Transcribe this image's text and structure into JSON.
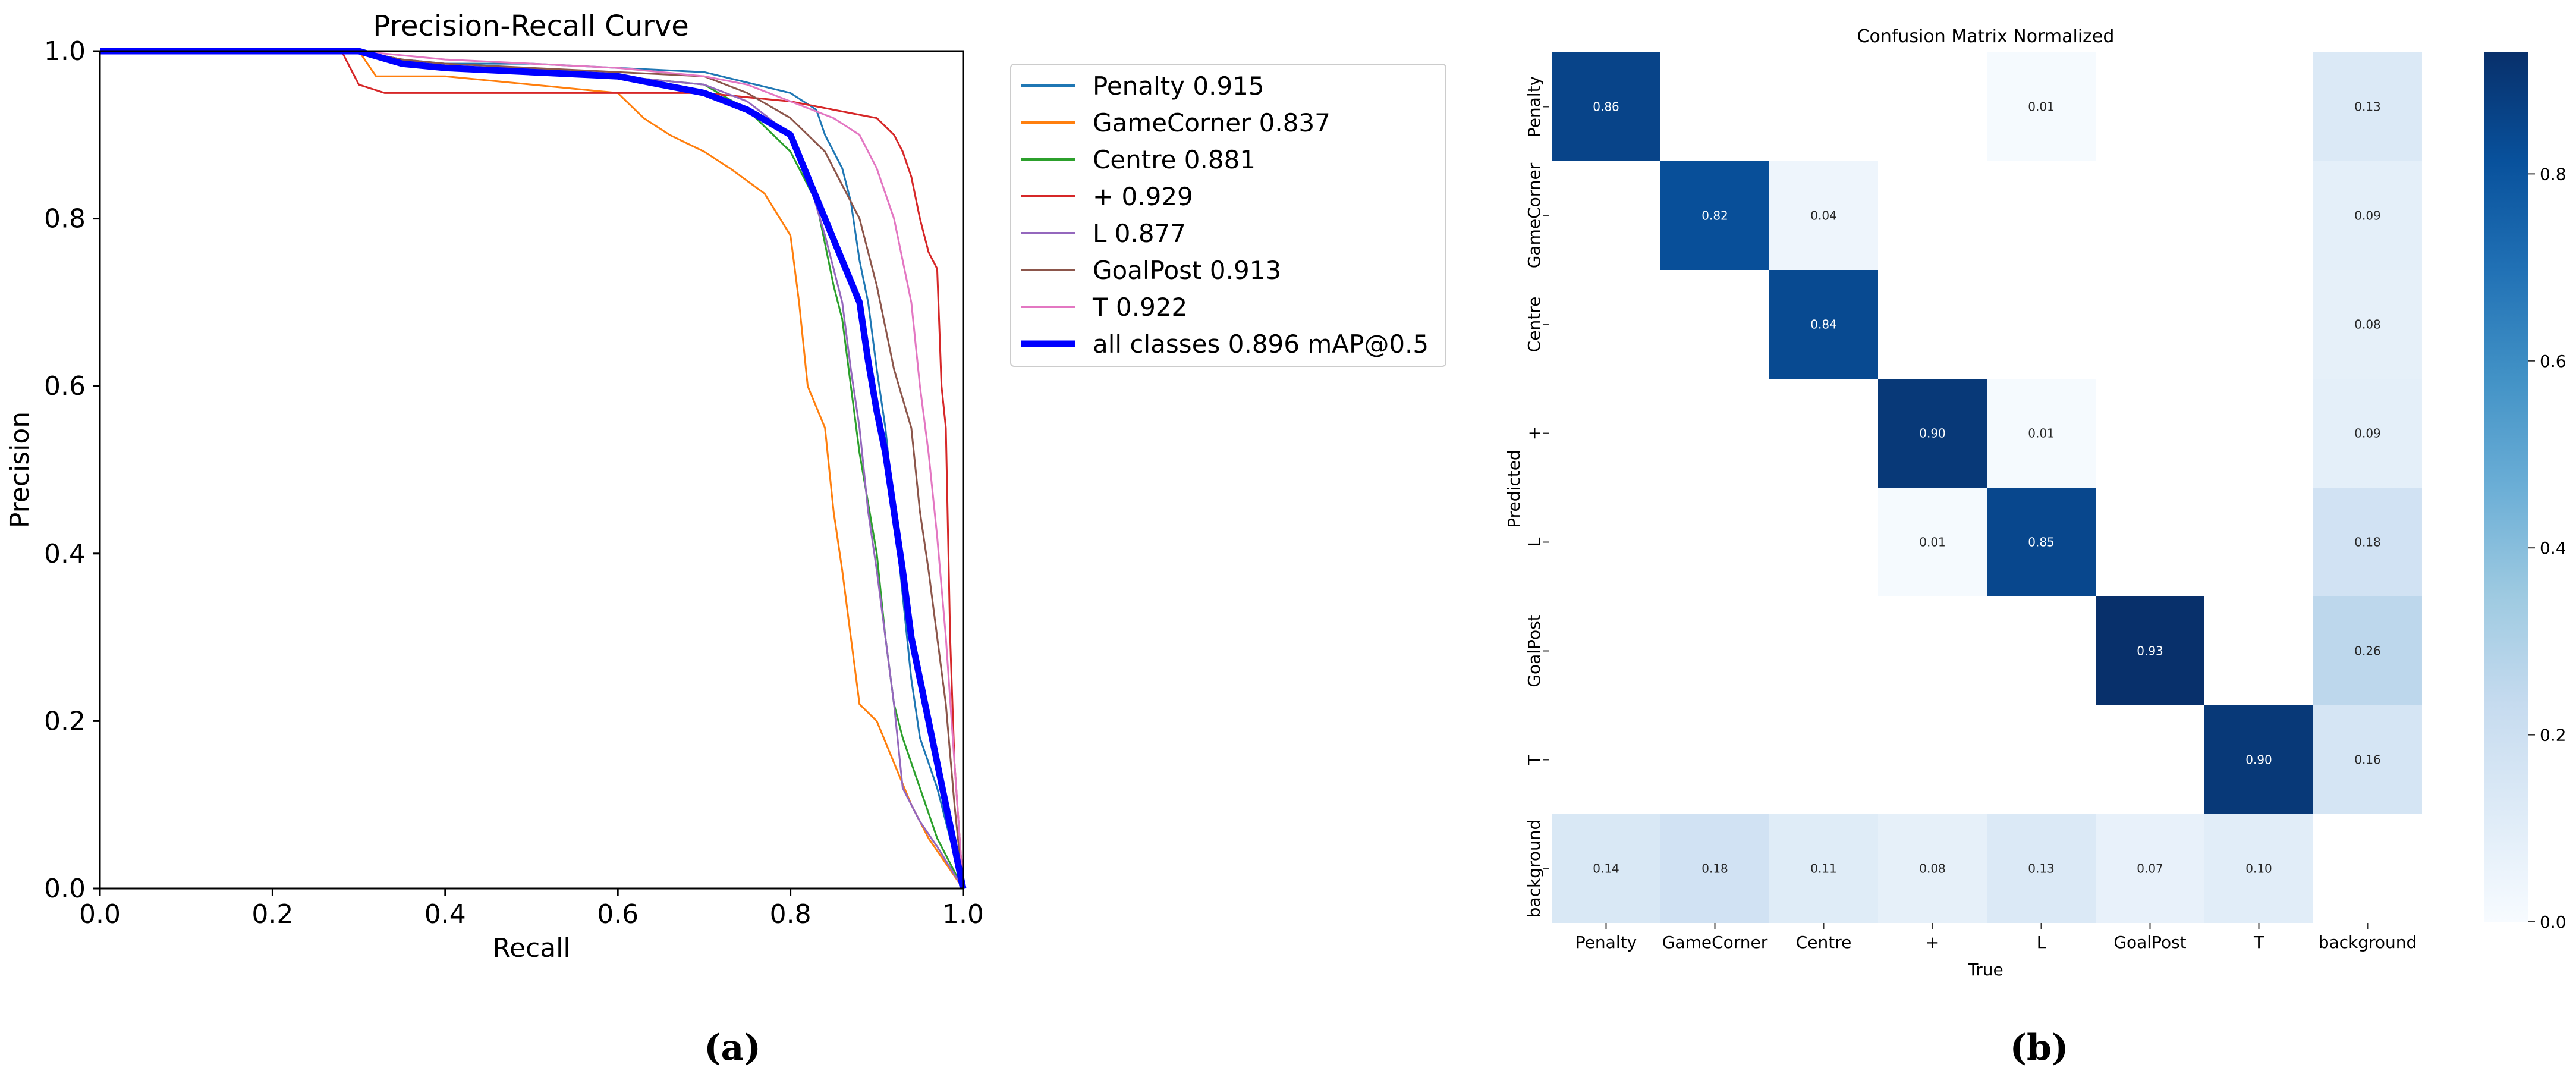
{
  "chart_data": [
    {
      "type": "line",
      "title": "Precision-Recall Curve",
      "xlabel": "Recall",
      "ylabel": "Precision",
      "xlim": [
        0,
        1
      ],
      "ylim": [
        0,
        1
      ],
      "xticks": [
        "0.0",
        "0.2",
        "0.4",
        "0.6",
        "0.8",
        "1.0"
      ],
      "yticks": [
        "0.0",
        "0.2",
        "0.4",
        "0.6",
        "0.8",
        "1.0"
      ],
      "grid": false,
      "legend_position": "outside-right",
      "series": [
        {
          "name": "Penalty",
          "label": "Penalty  0.915",
          "ap": 0.915,
          "color": "#1f77b4",
          "width": "thin",
          "points": [
            [
              0,
              1
            ],
            [
              0.3,
              1
            ],
            [
              0.35,
              0.99
            ],
            [
              0.4,
              0.985
            ],
            [
              0.5,
              0.985
            ],
            [
              0.6,
              0.98
            ],
            [
              0.7,
              0.975
            ],
            [
              0.8,
              0.95
            ],
            [
              0.83,
              0.93
            ],
            [
              0.84,
              0.9
            ],
            [
              0.86,
              0.86
            ],
            [
              0.87,
              0.82
            ],
            [
              0.88,
              0.75
            ],
            [
              0.89,
              0.7
            ],
            [
              0.9,
              0.62
            ],
            [
              0.91,
              0.55
            ],
            [
              0.92,
              0.45
            ],
            [
              0.93,
              0.35
            ],
            [
              0.94,
              0.25
            ],
            [
              0.95,
              0.18
            ],
            [
              0.97,
              0.12
            ],
            [
              1.0,
              0.0
            ]
          ]
        },
        {
          "name": "GameCorner",
          "label": "GameCorner  0.837",
          "ap": 0.837,
          "color": "#ff7f0e",
          "width": "thin",
          "points": [
            [
              0,
              1
            ],
            [
              0.3,
              1
            ],
            [
              0.32,
              0.97
            ],
            [
              0.4,
              0.97
            ],
            [
              0.5,
              0.96
            ],
            [
              0.6,
              0.95
            ],
            [
              0.63,
              0.92
            ],
            [
              0.66,
              0.9
            ],
            [
              0.7,
              0.88
            ],
            [
              0.73,
              0.86
            ],
            [
              0.77,
              0.83
            ],
            [
              0.8,
              0.78
            ],
            [
              0.81,
              0.7
            ],
            [
              0.82,
              0.6
            ],
            [
              0.84,
              0.55
            ],
            [
              0.85,
              0.45
            ],
            [
              0.86,
              0.38
            ],
            [
              0.87,
              0.3
            ],
            [
              0.88,
              0.22
            ],
            [
              0.9,
              0.2
            ],
            [
              0.92,
              0.15
            ],
            [
              0.94,
              0.1
            ],
            [
              0.96,
              0.06
            ],
            [
              1.0,
              0.0
            ]
          ]
        },
        {
          "name": "Centre",
          "label": "Centre  0.881",
          "ap": 0.881,
          "color": "#2ca02c",
          "width": "thin",
          "points": [
            [
              0,
              1
            ],
            [
              0.3,
              1
            ],
            [
              0.35,
              0.99
            ],
            [
              0.4,
              0.98
            ],
            [
              0.5,
              0.98
            ],
            [
              0.6,
              0.97
            ],
            [
              0.7,
              0.96
            ],
            [
              0.75,
              0.93
            ],
            [
              0.8,
              0.88
            ],
            [
              0.83,
              0.82
            ],
            [
              0.85,
              0.72
            ],
            [
              0.86,
              0.68
            ],
            [
              0.87,
              0.6
            ],
            [
              0.88,
              0.52
            ],
            [
              0.89,
              0.46
            ],
            [
              0.9,
              0.4
            ],
            [
              0.91,
              0.3
            ],
            [
              0.92,
              0.22
            ],
            [
              0.93,
              0.18
            ],
            [
              0.95,
              0.12
            ],
            [
              0.97,
              0.06
            ],
            [
              1.0,
              0.0
            ]
          ]
        },
        {
          "name": "+",
          "label": "+   0.929",
          "ap": 0.929,
          "color": "#d62728",
          "width": "thin",
          "points": [
            [
              0,
              1
            ],
            [
              0.28,
              1
            ],
            [
              0.3,
              0.96
            ],
            [
              0.33,
              0.95
            ],
            [
              0.5,
              0.95
            ],
            [
              0.6,
              0.95
            ],
            [
              0.7,
              0.95
            ],
            [
              0.8,
              0.94
            ],
            [
              0.85,
              0.93
            ],
            [
              0.9,
              0.92
            ],
            [
              0.92,
              0.9
            ],
            [
              0.93,
              0.88
            ],
            [
              0.94,
              0.85
            ],
            [
              0.95,
              0.8
            ],
            [
              0.96,
              0.76
            ],
            [
              0.97,
              0.74
            ],
            [
              0.975,
              0.6
            ],
            [
              0.98,
              0.55
            ],
            [
              0.985,
              0.3
            ],
            [
              0.99,
              0.15
            ],
            [
              1.0,
              0.0
            ]
          ]
        },
        {
          "name": "L",
          "label": "L   0.877",
          "ap": 0.877,
          "color": "#9467bd",
          "width": "thin",
          "points": [
            [
              0,
              1
            ],
            [
              0.3,
              1
            ],
            [
              0.35,
              0.99
            ],
            [
              0.4,
              0.98
            ],
            [
              0.5,
              0.98
            ],
            [
              0.6,
              0.97
            ],
            [
              0.7,
              0.96
            ],
            [
              0.75,
              0.94
            ],
            [
              0.8,
              0.9
            ],
            [
              0.82,
              0.85
            ],
            [
              0.84,
              0.78
            ],
            [
              0.86,
              0.7
            ],
            [
              0.87,
              0.62
            ],
            [
              0.88,
              0.55
            ],
            [
              0.89,
              0.45
            ],
            [
              0.9,
              0.38
            ],
            [
              0.91,
              0.3
            ],
            [
              0.92,
              0.22
            ],
            [
              0.93,
              0.12
            ],
            [
              0.95,
              0.08
            ],
            [
              0.97,
              0.05
            ],
            [
              1.0,
              0.0
            ]
          ]
        },
        {
          "name": "GoalPost",
          "label": "GoalPost  0.913",
          "ap": 0.913,
          "color": "#8c564b",
          "width": "thin",
          "points": [
            [
              0,
              1
            ],
            [
              0.3,
              1
            ],
            [
              0.35,
              0.99
            ],
            [
              0.4,
              0.985
            ],
            [
              0.5,
              0.98
            ],
            [
              0.6,
              0.975
            ],
            [
              0.7,
              0.97
            ],
            [
              0.75,
              0.95
            ],
            [
              0.8,
              0.92
            ],
            [
              0.84,
              0.88
            ],
            [
              0.86,
              0.84
            ],
            [
              0.88,
              0.8
            ],
            [
              0.9,
              0.72
            ],
            [
              0.92,
              0.62
            ],
            [
              0.94,
              0.55
            ],
            [
              0.95,
              0.45
            ],
            [
              0.96,
              0.38
            ],
            [
              0.97,
              0.3
            ],
            [
              0.98,
              0.22
            ],
            [
              0.99,
              0.1
            ],
            [
              1.0,
              0.0
            ]
          ]
        },
        {
          "name": "T",
          "label": "T 0.922",
          "ap": 0.922,
          "color": "#e377c2",
          "width": "thin",
          "points": [
            [
              0,
              1
            ],
            [
              0.3,
              1
            ],
            [
              0.35,
              0.995
            ],
            [
              0.4,
              0.99
            ],
            [
              0.5,
              0.985
            ],
            [
              0.6,
              0.98
            ],
            [
              0.7,
              0.97
            ],
            [
              0.75,
              0.96
            ],
            [
              0.8,
              0.94
            ],
            [
              0.85,
              0.92
            ],
            [
              0.88,
              0.9
            ],
            [
              0.9,
              0.86
            ],
            [
              0.92,
              0.8
            ],
            [
              0.94,
              0.7
            ],
            [
              0.95,
              0.6
            ],
            [
              0.96,
              0.52
            ],
            [
              0.97,
              0.42
            ],
            [
              0.98,
              0.3
            ],
            [
              0.99,
              0.15
            ],
            [
              1.0,
              0.0
            ]
          ]
        },
        {
          "name": "all classes",
          "label": "all classes 0.896 mAP@0.5",
          "ap": 0.896,
          "color": "#0000ff",
          "width": "thick",
          "points": [
            [
              0,
              1
            ],
            [
              0.3,
              1
            ],
            [
              0.35,
              0.985
            ],
            [
              0.4,
              0.98
            ],
            [
              0.5,
              0.975
            ],
            [
              0.6,
              0.97
            ],
            [
              0.65,
              0.96
            ],
            [
              0.7,
              0.95
            ],
            [
              0.75,
              0.93
            ],
            [
              0.8,
              0.9
            ],
            [
              0.82,
              0.85
            ],
            [
              0.84,
              0.8
            ],
            [
              0.86,
              0.75
            ],
            [
              0.88,
              0.7
            ],
            [
              0.89,
              0.63
            ],
            [
              0.9,
              0.57
            ],
            [
              0.91,
              0.52
            ],
            [
              0.92,
              0.45
            ],
            [
              0.93,
              0.38
            ],
            [
              0.94,
              0.3
            ],
            [
              0.95,
              0.25
            ],
            [
              0.96,
              0.2
            ],
            [
              0.97,
              0.15
            ],
            [
              0.98,
              0.1
            ],
            [
              1.0,
              0.0
            ]
          ]
        }
      ]
    },
    {
      "type": "heatmap",
      "title": "Confusion Matrix Normalized",
      "xlabel": "True",
      "ylabel": "Predicted",
      "x_categories": [
        "Penalty",
        "GameCorner",
        "Centre",
        "+",
        "L",
        "GoalPost",
        "T",
        "background"
      ],
      "y_categories": [
        "Penalty",
        "GameCorner",
        "Centre",
        "+",
        "L",
        "GoalPost",
        "T",
        "background"
      ],
      "matrix": [
        [
          0.86,
          null,
          null,
          null,
          0.01,
          null,
          null,
          0.13
        ],
        [
          null,
          0.82,
          0.04,
          null,
          null,
          null,
          null,
          0.09
        ],
        [
          null,
          null,
          0.84,
          null,
          null,
          null,
          null,
          0.08
        ],
        [
          null,
          null,
          null,
          0.9,
          0.01,
          null,
          null,
          0.09
        ],
        [
          null,
          null,
          null,
          0.01,
          0.85,
          null,
          null,
          0.18
        ],
        [
          null,
          null,
          null,
          null,
          null,
          0.93,
          null,
          0.26
        ],
        [
          null,
          null,
          null,
          null,
          null,
          null,
          0.9,
          0.16
        ],
        [
          0.14,
          0.18,
          0.11,
          0.08,
          0.13,
          0.07,
          0.1,
          null
        ]
      ],
      "colormap": "Blues",
      "vmin": 0,
      "vmax": 0.93,
      "colorbar_ticks": [
        "0.0",
        "0.2",
        "0.4",
        "0.6",
        "0.8"
      ],
      "colorbar_tick_values": [
        0,
        0.2,
        0.4,
        0.6,
        0.8
      ]
    }
  ],
  "panel_labels": [
    "(a)",
    "(b)"
  ],
  "colors": {
    "axis": "#000000",
    "background": "#ffffff"
  }
}
